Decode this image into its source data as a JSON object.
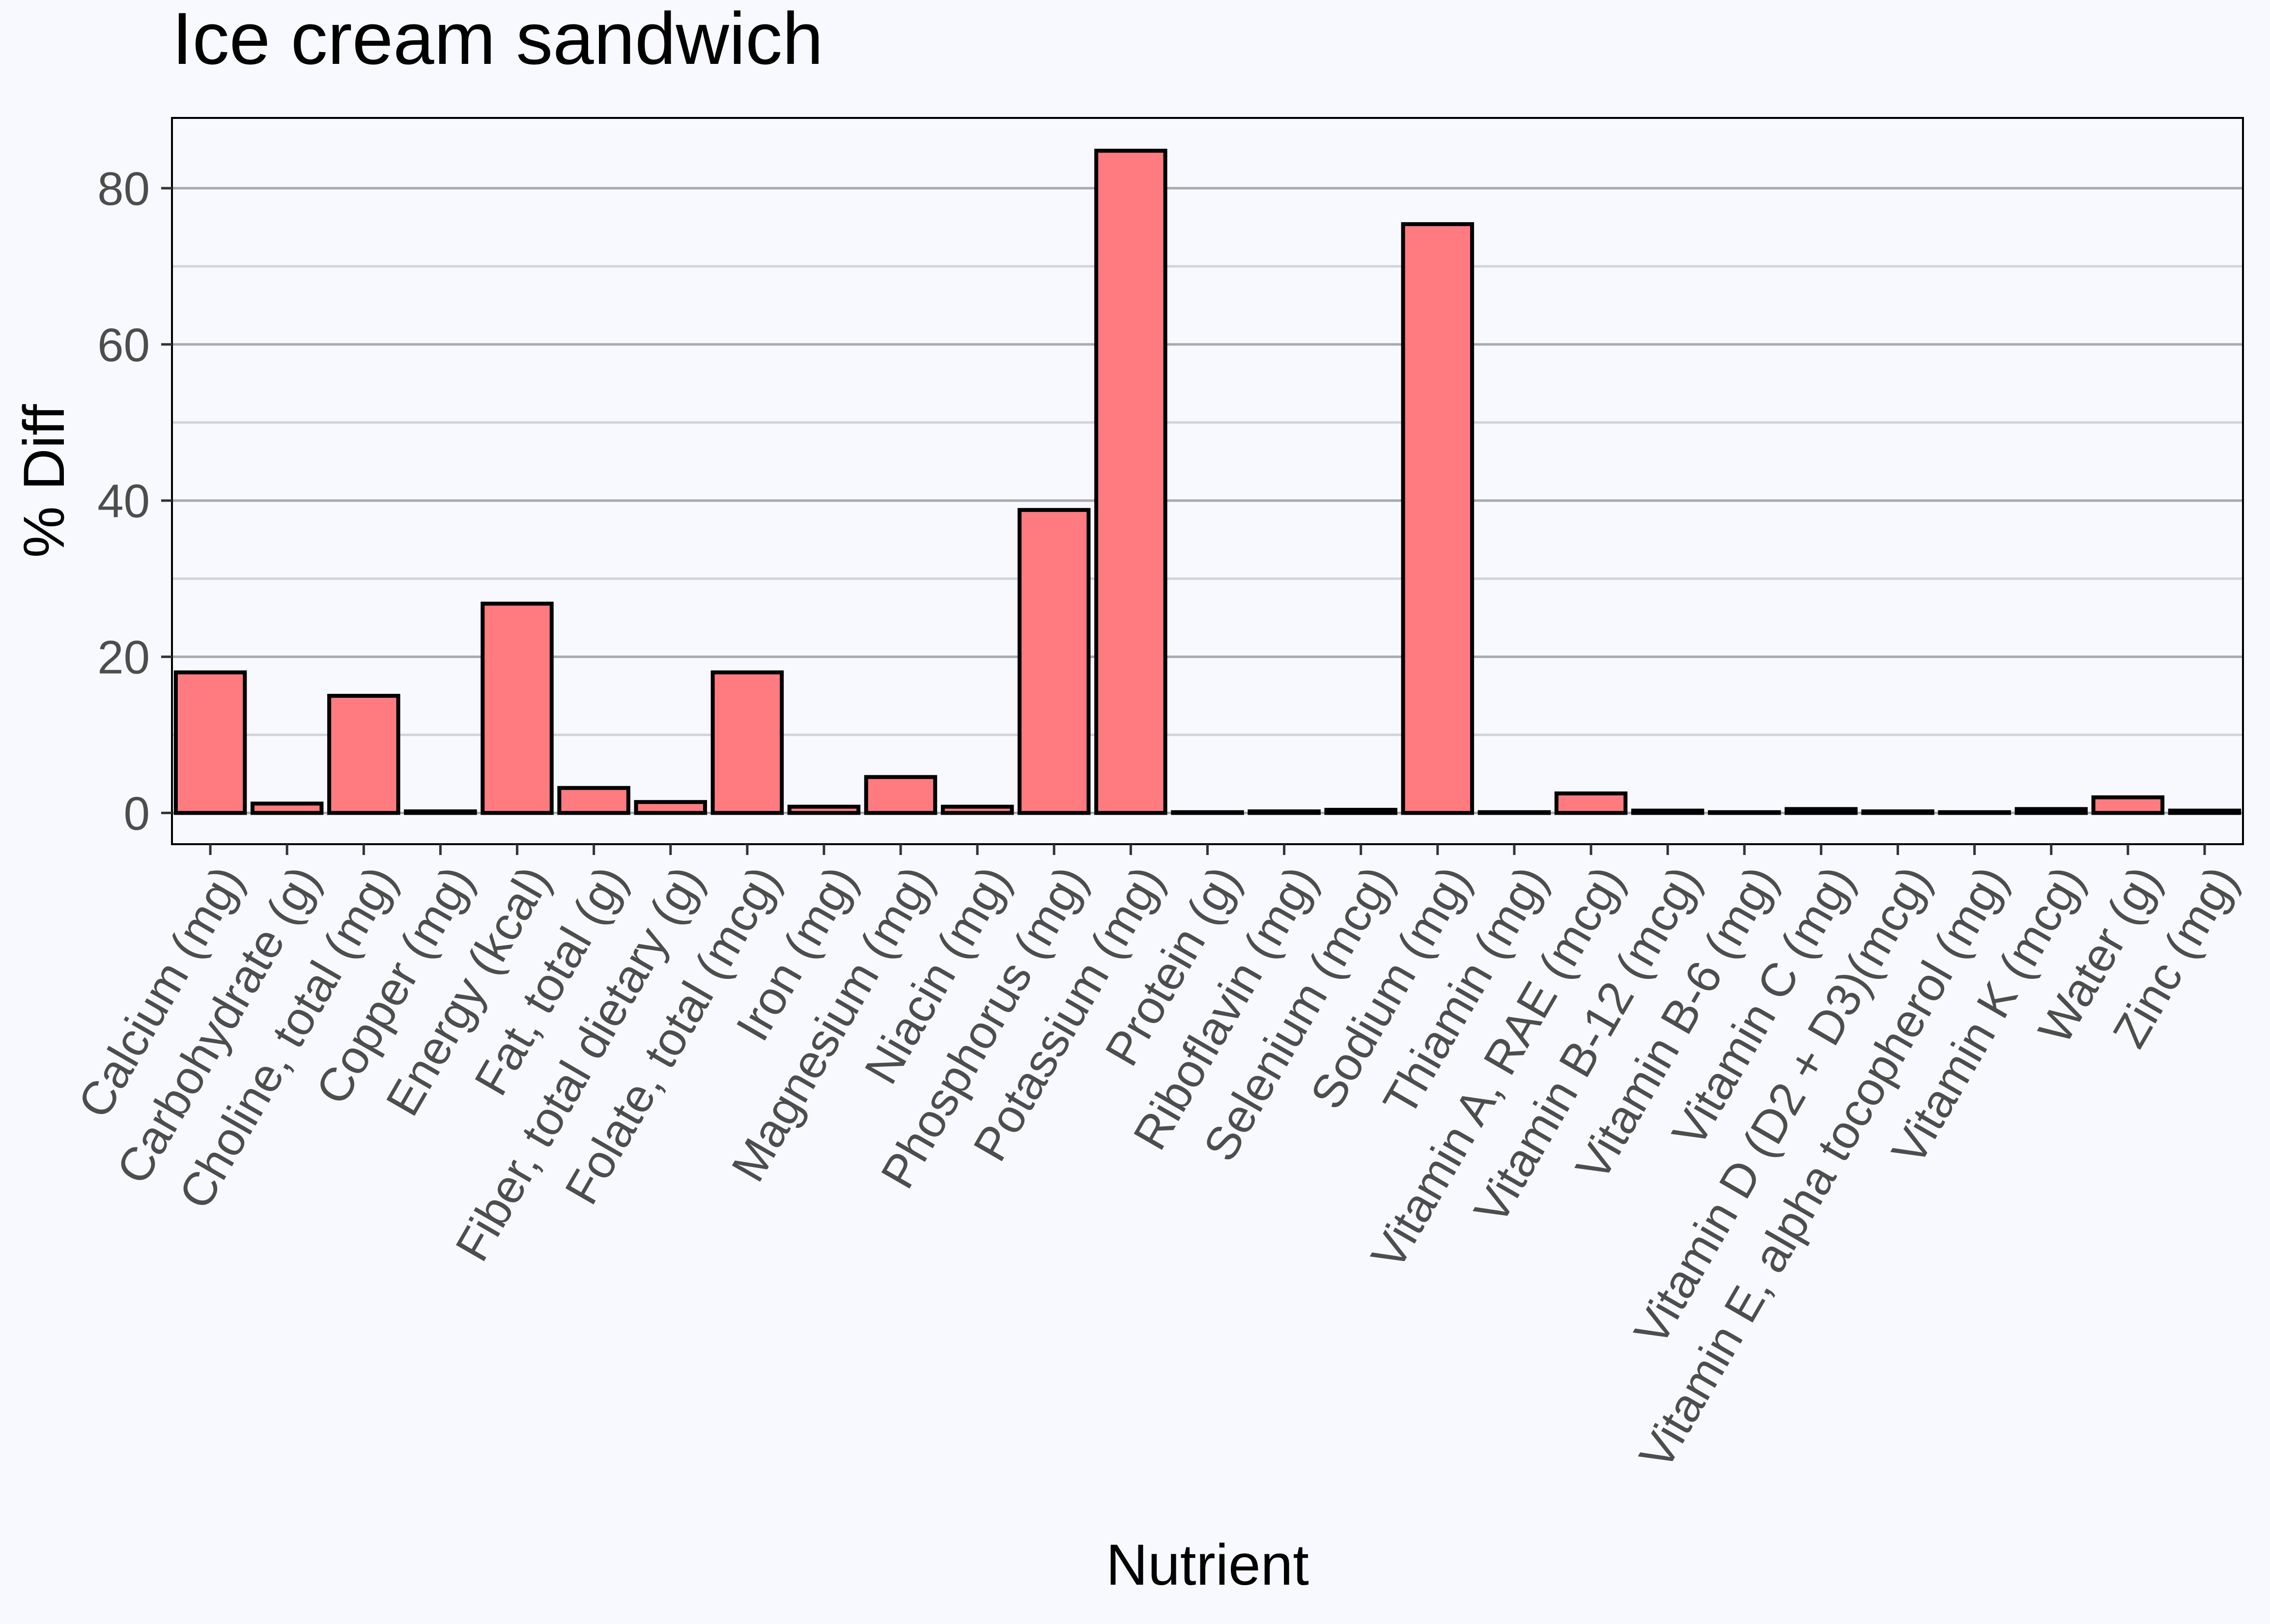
{
  "chart_data": {
    "type": "bar",
    "title": "Ice cream sandwich",
    "xlabel": "Nutrient",
    "ylabel": "% Diff",
    "ylim": [
      -4,
      89
    ],
    "yticks": [
      0,
      20,
      40,
      60,
      80
    ],
    "ytick_labels": [
      "0",
      "20",
      "40",
      "60",
      "80"
    ],
    "grid": true,
    "colors": {
      "background": "#F8F9FE",
      "bar_fill": "#FF7B80",
      "bar_stroke": "#000000",
      "grid_major": "#A9A9AE",
      "grid_minor": "#D3D4D9",
      "text": "#000000",
      "tick_text": "#4D4D4D"
    },
    "categories": [
      "Calcium (mg)",
      "Carbohydrate (g)",
      "Choline, total (mg)",
      "Copper (mg)",
      "Energy (kcal)",
      "Fat, total (g)",
      "Fiber, total dietary (g)",
      "Folate, total (mcg)",
      "Iron (mg)",
      "Magnesium (mg)",
      "Niacin (mg)",
      "Phosphorus (mg)",
      "Potassium (mg)",
      "Protein (g)",
      "Riboflavin (mg)",
      "Selenium (mcg)",
      "Sodium (mg)",
      "Thiamin (mg)",
      "Vitamin A, RAE (mcg)",
      "Vitamin B-12 (mcg)",
      "Vitamin B-6 (mg)",
      "Vitamin C (mg)",
      "Vitamin D (D2 + D3)(mcg)",
      "Vitamin E, alpha tocopherol (mg)",
      "Vitamin K (mcg)",
      "Water (g)",
      "Zinc (mg)"
    ],
    "values": [
      18,
      1.2,
      15,
      0.2,
      26.8,
      3.2,
      1.4,
      18,
      0.8,
      4.6,
      0.8,
      38.8,
      84.8,
      0.1,
      0.2,
      0.4,
      75.4,
      0.1,
      2.5,
      0.3,
      0.1,
      0.5,
      0.2,
      0.1,
      0.5,
      2,
      0.3
    ]
  }
}
